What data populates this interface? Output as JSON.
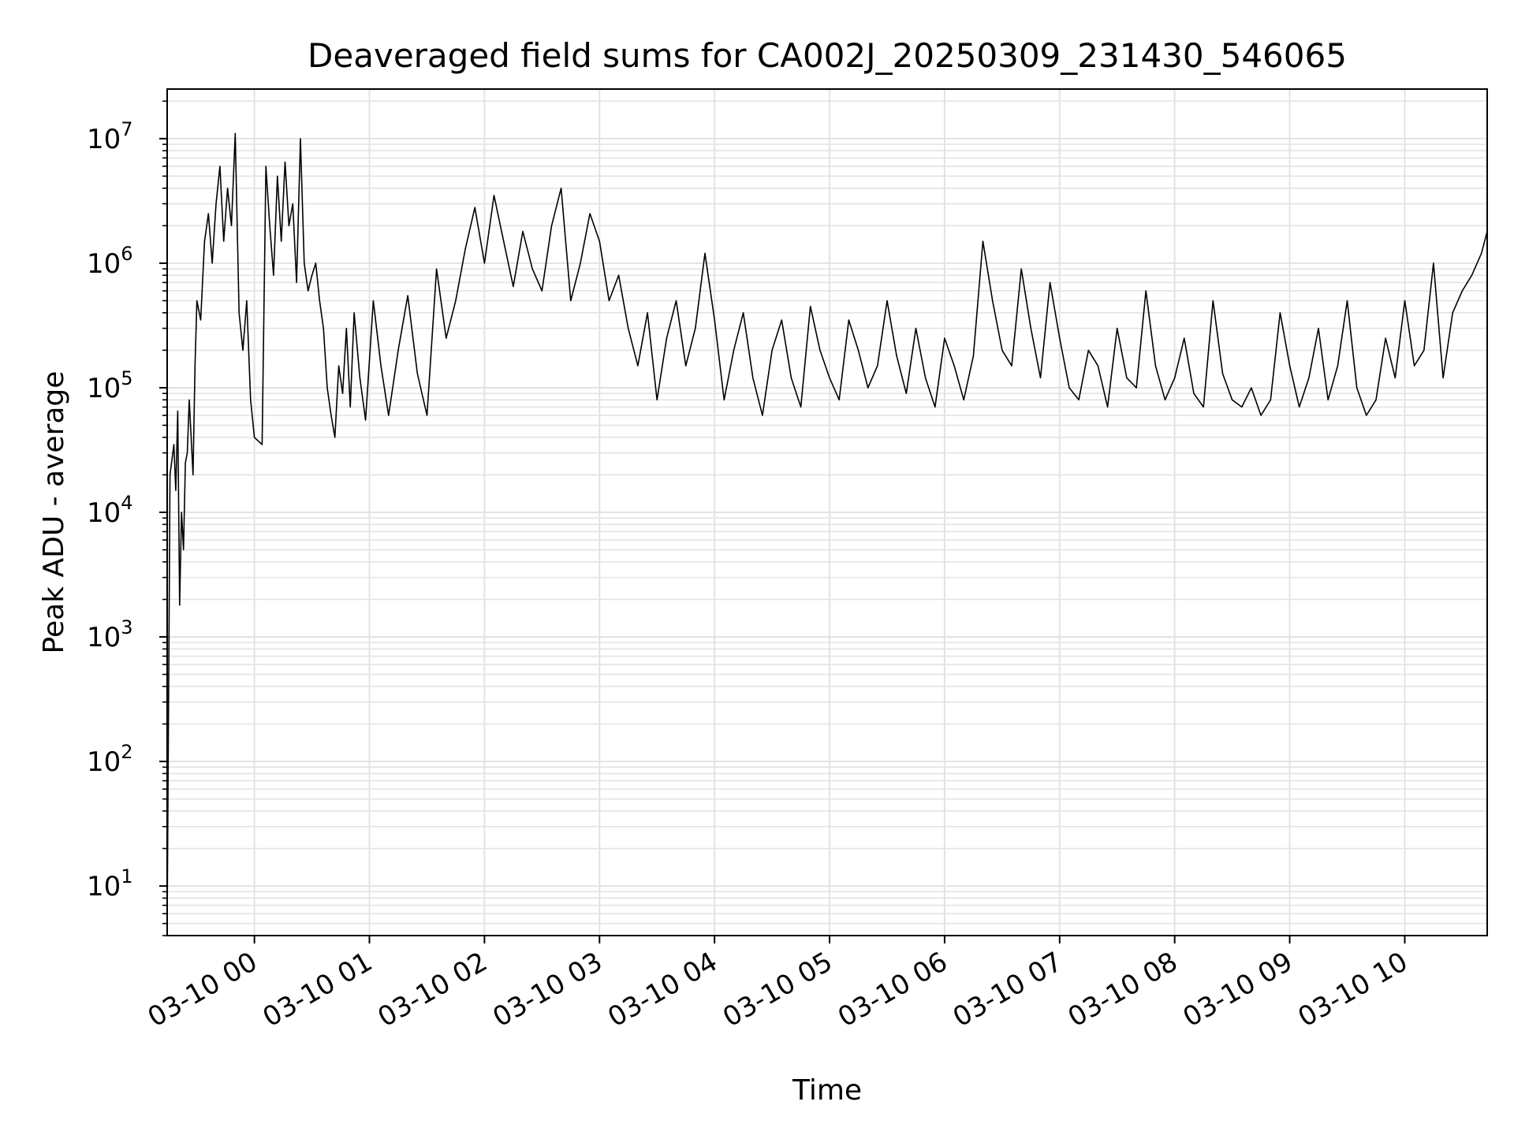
{
  "chart_data": {
    "type": "line",
    "title": "Deaveraged field sums for CA002J_20250309_231430_546065",
    "xlabel": "Time",
    "ylabel": "Peak ADU - average",
    "yscale": "log",
    "ylim": [
      4,
      25000000
    ],
    "xlim": [
      "2025-03-09 23:14:30",
      "2025-03-10 10:43:00"
    ],
    "grid": true,
    "line_color": "#000000",
    "grid_color": "#e3e3e3",
    "x_ticks": [
      {
        "value": "2025-03-10 00:00",
        "label": "03-10 00"
      },
      {
        "value": "2025-03-10 01:00",
        "label": "03-10 01"
      },
      {
        "value": "2025-03-10 02:00",
        "label": "03-10 02"
      },
      {
        "value": "2025-03-10 03:00",
        "label": "03-10 03"
      },
      {
        "value": "2025-03-10 04:00",
        "label": "03-10 04"
      },
      {
        "value": "2025-03-10 05:00",
        "label": "03-10 05"
      },
      {
        "value": "2025-03-10 06:00",
        "label": "03-10 06"
      },
      {
        "value": "2025-03-10 07:00",
        "label": "03-10 07"
      },
      {
        "value": "2025-03-10 08:00",
        "label": "03-10 08"
      },
      {
        "value": "2025-03-10 09:00",
        "label": "03-10 09"
      },
      {
        "value": "2025-03-10 10:00",
        "label": "03-10 10"
      }
    ],
    "y_ticks": [
      {
        "value": 10,
        "base": "10",
        "exp": "1"
      },
      {
        "value": 100,
        "base": "10",
        "exp": "2"
      },
      {
        "value": 1000,
        "base": "10",
        "exp": "3"
      },
      {
        "value": 10000,
        "base": "10",
        "exp": "4"
      },
      {
        "value": 100000,
        "base": "10",
        "exp": "5"
      },
      {
        "value": 1000000,
        "base": "10",
        "exp": "6"
      },
      {
        "value": 10000000,
        "base": "10",
        "exp": "7"
      }
    ],
    "series": [
      {
        "x": [
          "2025-03-09 23:14:30",
          "2025-03-09 23:16",
          "2025-03-09 23:18",
          "2025-03-09 23:19",
          "2025-03-09 23:20",
          "2025-03-09 23:21",
          "2025-03-09 23:22",
          "2025-03-09 23:23",
          "2025-03-09 23:24",
          "2025-03-09 23:25",
          "2025-03-09 23:26",
          "2025-03-09 23:28",
          "2025-03-09 23:29",
          "2025-03-09 23:30",
          "2025-03-09 23:32",
          "2025-03-09 23:34",
          "2025-03-09 23:36",
          "2025-03-09 23:38",
          "2025-03-09 23:40",
          "2025-03-09 23:42",
          "2025-03-09 23:44",
          "2025-03-09 23:46",
          "2025-03-09 23:48",
          "2025-03-09 23:50",
          "2025-03-09 23:52",
          "2025-03-09 23:54",
          "2025-03-09 23:56",
          "2025-03-09 23:58",
          "2025-03-10 00:00",
          "2025-03-10 00:04",
          "2025-03-10 00:06",
          "2025-03-10 00:08",
          "2025-03-10 00:10",
          "2025-03-10 00:12",
          "2025-03-10 00:14",
          "2025-03-10 00:16",
          "2025-03-10 00:18",
          "2025-03-10 00:20",
          "2025-03-10 00:22",
          "2025-03-10 00:24",
          "2025-03-10 00:26",
          "2025-03-10 00:28",
          "2025-03-10 00:30",
          "2025-03-10 00:32",
          "2025-03-10 00:34",
          "2025-03-10 00:36",
          "2025-03-10 00:38",
          "2025-03-10 00:40",
          "2025-03-10 00:42",
          "2025-03-10 00:44",
          "2025-03-10 00:46",
          "2025-03-10 00:48",
          "2025-03-10 00:50",
          "2025-03-10 00:52",
          "2025-03-10 00:55",
          "2025-03-10 00:58",
          "2025-03-10 01:02",
          "2025-03-10 01:06",
          "2025-03-10 01:10",
          "2025-03-10 01:15",
          "2025-03-10 01:20",
          "2025-03-10 01:25",
          "2025-03-10 01:30",
          "2025-03-10 01:35",
          "2025-03-10 01:40",
          "2025-03-10 01:45",
          "2025-03-10 01:50",
          "2025-03-10 01:55",
          "2025-03-10 02:00",
          "2025-03-10 02:05",
          "2025-03-10 02:10",
          "2025-03-10 02:15",
          "2025-03-10 02:20",
          "2025-03-10 02:25",
          "2025-03-10 02:30",
          "2025-03-10 02:35",
          "2025-03-10 02:40",
          "2025-03-10 02:45",
          "2025-03-10 02:50",
          "2025-03-10 02:55",
          "2025-03-10 03:00",
          "2025-03-10 03:05",
          "2025-03-10 03:10",
          "2025-03-10 03:15",
          "2025-03-10 03:20",
          "2025-03-10 03:25",
          "2025-03-10 03:30",
          "2025-03-10 03:35",
          "2025-03-10 03:40",
          "2025-03-10 03:45",
          "2025-03-10 03:50",
          "2025-03-10 03:55",
          "2025-03-10 04:00",
          "2025-03-10 04:05",
          "2025-03-10 04:10",
          "2025-03-10 04:15",
          "2025-03-10 04:20",
          "2025-03-10 04:25",
          "2025-03-10 04:30",
          "2025-03-10 04:35",
          "2025-03-10 04:40",
          "2025-03-10 04:45",
          "2025-03-10 04:50",
          "2025-03-10 04:55",
          "2025-03-10 05:00",
          "2025-03-10 05:05",
          "2025-03-10 05:10",
          "2025-03-10 05:15",
          "2025-03-10 05:20",
          "2025-03-10 05:25",
          "2025-03-10 05:30",
          "2025-03-10 05:35",
          "2025-03-10 05:40",
          "2025-03-10 05:45",
          "2025-03-10 05:50",
          "2025-03-10 05:55",
          "2025-03-10 06:00",
          "2025-03-10 06:05",
          "2025-03-10 06:10",
          "2025-03-10 06:15",
          "2025-03-10 06:20",
          "2025-03-10 06:25",
          "2025-03-10 06:30",
          "2025-03-10 06:35",
          "2025-03-10 06:40",
          "2025-03-10 06:45",
          "2025-03-10 06:50",
          "2025-03-10 06:55",
          "2025-03-10 07:00",
          "2025-03-10 07:05",
          "2025-03-10 07:10",
          "2025-03-10 07:15",
          "2025-03-10 07:20",
          "2025-03-10 07:25",
          "2025-03-10 07:30",
          "2025-03-10 07:35",
          "2025-03-10 07:40",
          "2025-03-10 07:45",
          "2025-03-10 07:50",
          "2025-03-10 07:55",
          "2025-03-10 08:00",
          "2025-03-10 08:05",
          "2025-03-10 08:10",
          "2025-03-10 08:15",
          "2025-03-10 08:20",
          "2025-03-10 08:25",
          "2025-03-10 08:30",
          "2025-03-10 08:35",
          "2025-03-10 08:40",
          "2025-03-10 08:45",
          "2025-03-10 08:50",
          "2025-03-10 08:55",
          "2025-03-10 09:00",
          "2025-03-10 09:05",
          "2025-03-10 09:10",
          "2025-03-10 09:15",
          "2025-03-10 09:20",
          "2025-03-10 09:25",
          "2025-03-10 09:30",
          "2025-03-10 09:35",
          "2025-03-10 09:40",
          "2025-03-10 09:45",
          "2025-03-10 09:50",
          "2025-03-10 09:55",
          "2025-03-10 10:00",
          "2025-03-10 10:05",
          "2025-03-10 10:10",
          "2025-03-10 10:15",
          "2025-03-10 10:20",
          "2025-03-10 10:25",
          "2025-03-10 10:30",
          "2025-03-10 10:35",
          "2025-03-10 10:40",
          "2025-03-10 10:43"
        ],
        "y": [
          5,
          20000,
          35000,
          15000,
          65000,
          1800,
          10000,
          5000,
          25000,
          30000,
          80000,
          20000,
          150000,
          500000,
          350000,
          1500000,
          2500000,
          1000000,
          3000000,
          6000000,
          1500000,
          4000000,
          2000000,
          11000000,
          400000,
          200000,
          500000,
          80000,
          40000,
          35000,
          6000000,
          2000000,
          800000,
          5000000,
          1500000,
          6500000,
          2000000,
          3000000,
          700000,
          10000000,
          1000000,
          600000,
          800000,
          1000000,
          500000,
          300000,
          100000,
          60000,
          40000,
          150000,
          90000,
          300000,
          70000,
          400000,
          120000,
          55000,
          500000,
          150000,
          60000,
          200000,
          550000,
          130000,
          60000,
          900000,
          250000,
          500000,
          1300000,
          2800000,
          1000000,
          3500000,
          1500000,
          650000,
          1800000,
          900000,
          600000,
          2000000,
          4000000,
          500000,
          1000000,
          2500000,
          1500000,
          500000,
          800000,
          300000,
          150000,
          400000,
          80000,
          250000,
          500000,
          150000,
          300000,
          1200000,
          350000,
          80000,
          200000,
          400000,
          120000,
          60000,
          200000,
          350000,
          120000,
          70000,
          450000,
          200000,
          120000,
          80000,
          350000,
          200000,
          100000,
          150000,
          500000,
          180000,
          90000,
          300000,
          120000,
          70000,
          250000,
          150000,
          80000,
          180000,
          1500000,
          500000,
          200000,
          150000,
          900000,
          300000,
          120000,
          700000,
          250000,
          100000,
          80000,
          200000,
          150000,
          70000,
          300000,
          120000,
          100000,
          600000,
          150000,
          80000,
          120000,
          250000,
          90000,
          70000,
          500000,
          130000,
          80000,
          70000,
          100000,
          60000,
          80000,
          400000,
          150000,
          70000,
          120000,
          300000,
          80000,
          150000,
          500000,
          100000,
          60000,
          80000,
          250000,
          120000,
          500000,
          150000,
          200000,
          1000000,
          120000,
          400000,
          600000,
          800000,
          1200000,
          1800000
        ]
      }
    ]
  }
}
